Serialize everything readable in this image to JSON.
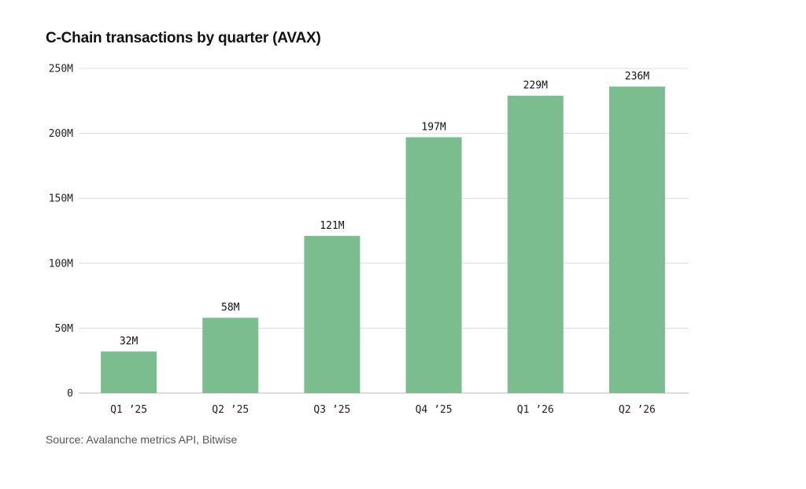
{
  "header": {
    "title": "C-Chain transactions by quarter (AVAX)"
  },
  "footer": {
    "source": "Source: Avalanche metrics API, Bitwise"
  },
  "colors": {
    "bar": "#7bbd8f",
    "grid": "#dcdcdc",
    "axis": "#bbbbbb"
  },
  "chart_data": {
    "type": "bar",
    "title": "C-Chain transactions by quarter (AVAX)",
    "xlabel": "",
    "ylabel": "",
    "categories": [
      "Q1 ’25",
      "Q2 ’25",
      "Q3 ’25",
      "Q4 ’25",
      "Q1 ’26",
      "Q2 ’26"
    ],
    "values": [
      32,
      58,
      121,
      197,
      229,
      236
    ],
    "value_labels": [
      "32M",
      "58M",
      "121M",
      "197M",
      "229M",
      "236M"
    ],
    "unit": "M",
    "ylim": [
      0,
      250
    ],
    "yticks": [
      0,
      50,
      100,
      150,
      200,
      250
    ],
    "ytick_labels": [
      "0",
      "50M",
      "100M",
      "150M",
      "200M",
      "250M"
    ],
    "grid": true,
    "legend": "none"
  }
}
